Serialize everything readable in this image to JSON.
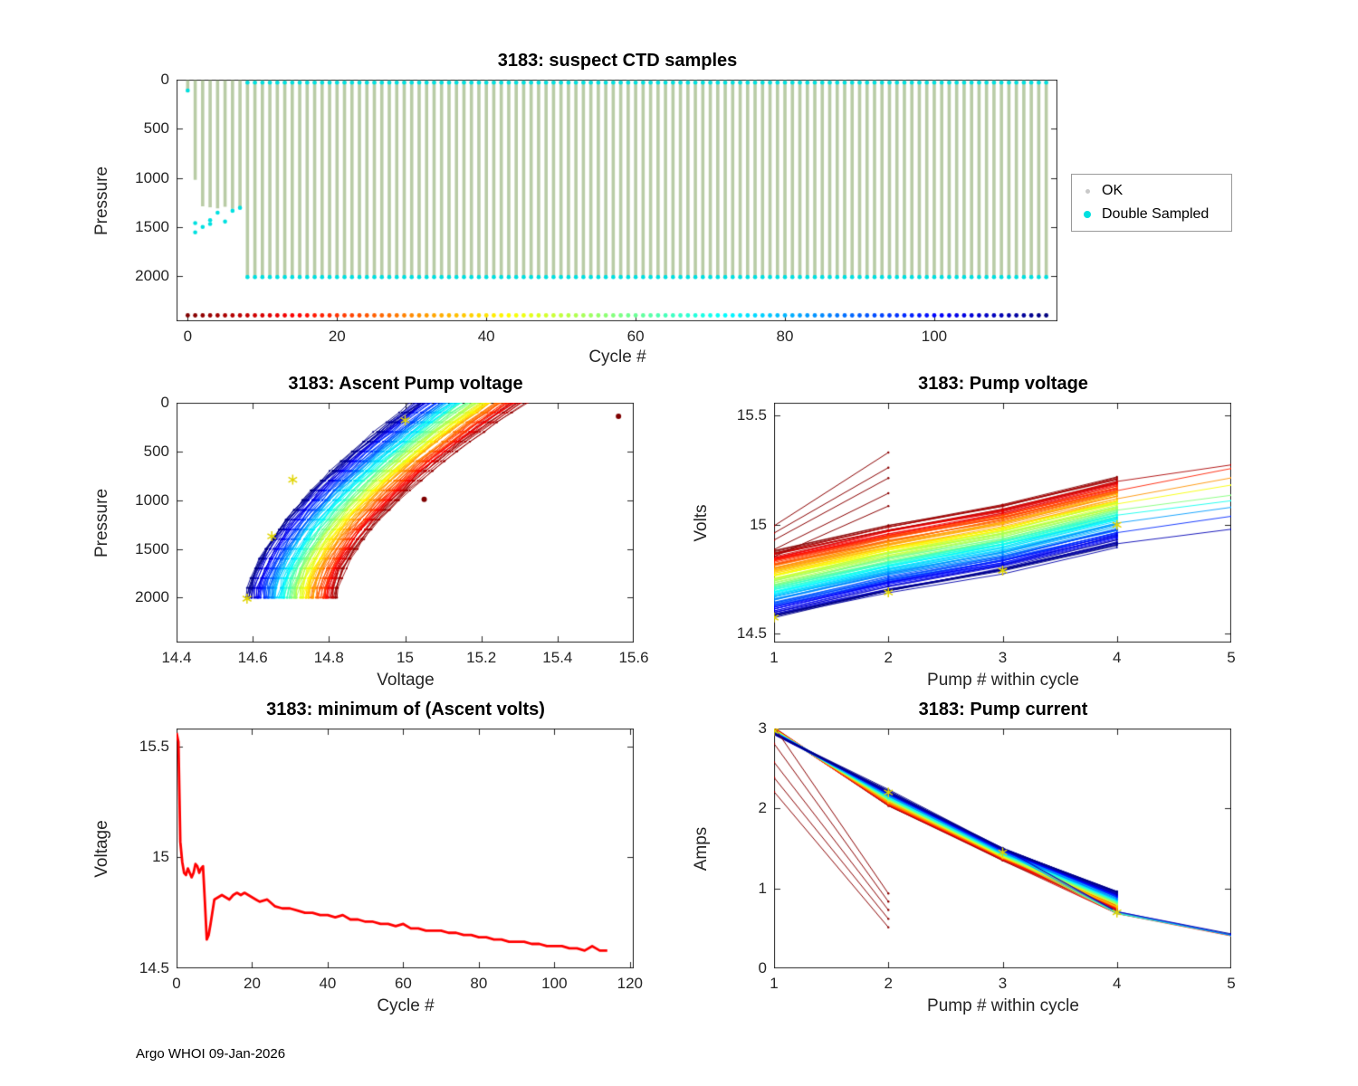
{
  "page": {
    "background": "#ffffff",
    "footer": "Argo WHOI 09-Jan-2026"
  },
  "chart_data": [
    {
      "id": "ctd_samples",
      "type": "scatter",
      "title": "3183: suspect CTD samples",
      "xlabel": "Cycle #",
      "ylabel": "Pressure",
      "xlim": [
        -1.5,
        116.5
      ],
      "ylim": [
        0,
        2460
      ],
      "y_reversed": true,
      "xticks": [
        0,
        20,
        40,
        60,
        80,
        100
      ],
      "yticks": [
        0,
        500,
        1000,
        1500,
        2000
      ],
      "n_cycles": 116,
      "legend": [
        {
          "label": "OK",
          "marker_color": "#c9c9c9"
        },
        {
          "label": "Double Sampled",
          "marker_color": "#00e0e0"
        }
      ],
      "series": {
        "ok_color": "#b9cca6",
        "double_sampled_color": "#00e0e0",
        "surface_pressure": 6,
        "early_cycles": [
          {
            "cycle": 0,
            "bar_to": 130,
            "double_sampled_at": [
              110
            ]
          },
          {
            "cycle": 1,
            "bar_to": 1020,
            "double_sampled_at": [
              1555,
              1460
            ]
          },
          {
            "cycle": 2,
            "bar_to": 1290,
            "double_sampled_at": [
              1500
            ]
          },
          {
            "cycle": 3,
            "bar_to": 1300,
            "double_sampled_at": [
              1470,
              1430
            ]
          },
          {
            "cycle": 4,
            "bar_to": 1310,
            "double_sampled_at": [
              1355
            ]
          },
          {
            "cycle": 5,
            "bar_to": 1295,
            "double_sampled_at": [
              1445
            ]
          },
          {
            "cycle": 6,
            "bar_to": 1315,
            "double_sampled_at": [
              1335
            ]
          },
          {
            "cycle": 7,
            "bar_to": 1300,
            "double_sampled_at": [
              1305
            ]
          }
        ],
        "deep_cycles": {
          "from": 8,
          "to": 115,
          "bar_to": 2005,
          "double_sampled_at": [
            30,
            2010
          ]
        },
        "bottom_marker_row": {
          "pressure": 2400,
          "colormap": "jet reversed by cycle: cycle 0 = dark red, cycle 115 = dark blue"
        }
      }
    },
    {
      "id": "ascent_pump_voltage",
      "type": "line",
      "title": "3183: Ascent Pump voltage",
      "xlabel": "Voltage",
      "ylabel": "Pressure",
      "xlim": [
        14.4,
        15.6
      ],
      "ylim": [
        0,
        2460
      ],
      "y_reversed": true,
      "xticks": [
        14.4,
        14.6,
        14.8,
        15,
        15.2,
        15.4,
        15.6
      ],
      "yticks": [
        0,
        500,
        1000,
        1500,
        2000
      ],
      "n_cycles": 116,
      "colormap": "jet reversed by cycle (early cycles dark red, late cycles dark blue)",
      "per_cycle_model": {
        "pressure_span": [
          2000,
          0
        ],
        "voltage_at_2000_dbar": [
          14.82,
          14.585
        ],
        "voltage_at_surface": [
          15.31,
          15.02
        ],
        "curve_exponent": 1.6
      },
      "marker_points": {
        "color": "#e0d400",
        "points": [
          [
            14.585,
            2010
          ],
          [
            14.65,
            1370
          ],
          [
            14.705,
            790
          ],
          [
            15.0,
            180
          ]
        ]
      },
      "outlier_points": {
        "color": "#7f0000",
        "points": [
          [
            15.56,
            140
          ],
          [
            15.05,
            990
          ]
        ]
      }
    },
    {
      "id": "pump_voltage",
      "type": "line",
      "title": "3183: Pump voltage",
      "xlabel": "Pump # within cycle",
      "ylabel": "Volts",
      "xlim": [
        1,
        5
      ],
      "ylim": [
        14.46,
        15.56
      ],
      "xticks": [
        1,
        2,
        3,
        4,
        5
      ],
      "yticks": [
        14.5,
        15,
        15.5
      ],
      "n_cycles": 116,
      "colormap": "jet reversed by cycle (early cycles red, late cycles dark blue)",
      "per_cycle_model": {
        "x": [
          1,
          2,
          3,
          4
        ],
        "volts_at_pump1": [
          14.88,
          14.575
        ],
        "increment_1_to_2": 0.115,
        "increment_2_to_3": 0.095,
        "increment_3_to_4": 0.125,
        "some_cycles_extend_to_pump5_increment": 0.08
      },
      "steep_early_cycle_lines": {
        "color": "#8b0000",
        "count": 5,
        "volts_at_pump1": [
          14.85,
          15.0
        ],
        "volts_at_pump2": [
          15.1,
          15.33
        ]
      },
      "marker_points": {
        "color": "#e0d400",
        "points": [
          [
            1,
            14.575
          ],
          [
            2,
            14.69
          ],
          [
            3,
            14.79
          ],
          [
            4,
            15.0
          ]
        ]
      }
    },
    {
      "id": "min_ascent_volts",
      "type": "line",
      "title": "3183: minimum of (Ascent volts)",
      "xlabel": "Cycle #",
      "ylabel": "Voltage",
      "xlim": [
        0,
        121
      ],
      "ylim": [
        14.5,
        15.58
      ],
      "xticks": [
        0,
        20,
        40,
        60,
        80,
        100,
        120
      ],
      "yticks": [
        14.5,
        15,
        15.5
      ],
      "line_color": "#ff0000",
      "line_width": 2.8,
      "points": [
        [
          0,
          15.56
        ],
        [
          0.5,
          15.52
        ],
        [
          1,
          15.07
        ],
        [
          1.5,
          14.98
        ],
        [
          2,
          14.93
        ],
        [
          2.5,
          14.92
        ],
        [
          3,
          14.95
        ],
        [
          3.5,
          14.93
        ],
        [
          4,
          14.91
        ],
        [
          4.5,
          14.93
        ],
        [
          5,
          14.97
        ],
        [
          5.5,
          14.96
        ],
        [
          6,
          14.93
        ],
        [
          6.5,
          14.95
        ],
        [
          7,
          14.96
        ],
        [
          7.5,
          14.8
        ],
        [
          8,
          14.63
        ],
        [
          8.5,
          14.65
        ],
        [
          9,
          14.7
        ],
        [
          10,
          14.81
        ],
        [
          11,
          14.82
        ],
        [
          12,
          14.83
        ],
        [
          13,
          14.82
        ],
        [
          14,
          14.81
        ],
        [
          15,
          14.83
        ],
        [
          16,
          14.84
        ],
        [
          17,
          14.83
        ],
        [
          18,
          14.84
        ],
        [
          19,
          14.83
        ],
        [
          20,
          14.82
        ],
        [
          21,
          14.81
        ],
        [
          22,
          14.8
        ],
        [
          24,
          14.81
        ],
        [
          26,
          14.78
        ],
        [
          28,
          14.77
        ],
        [
          30,
          14.77
        ],
        [
          32,
          14.76
        ],
        [
          34,
          14.75
        ],
        [
          36,
          14.75
        ],
        [
          38,
          14.74
        ],
        [
          40,
          14.74
        ],
        [
          42,
          14.73
        ],
        [
          44,
          14.74
        ],
        [
          46,
          14.72
        ],
        [
          48,
          14.72
        ],
        [
          50,
          14.71
        ],
        [
          52,
          14.71
        ],
        [
          54,
          14.7
        ],
        [
          56,
          14.7
        ],
        [
          58,
          14.69
        ],
        [
          60,
          14.7
        ],
        [
          62,
          14.68
        ],
        [
          64,
          14.68
        ],
        [
          66,
          14.67
        ],
        [
          68,
          14.67
        ],
        [
          70,
          14.67
        ],
        [
          72,
          14.66
        ],
        [
          74,
          14.66
        ],
        [
          76,
          14.65
        ],
        [
          78,
          14.65
        ],
        [
          80,
          14.64
        ],
        [
          82,
          14.64
        ],
        [
          84,
          14.63
        ],
        [
          86,
          14.63
        ],
        [
          88,
          14.62
        ],
        [
          90,
          14.62
        ],
        [
          92,
          14.62
        ],
        [
          94,
          14.61
        ],
        [
          96,
          14.61
        ],
        [
          98,
          14.6
        ],
        [
          100,
          14.6
        ],
        [
          102,
          14.6
        ],
        [
          104,
          14.59
        ],
        [
          106,
          14.59
        ],
        [
          108,
          14.58
        ],
        [
          110,
          14.6
        ],
        [
          111,
          14.59
        ],
        [
          112,
          14.58
        ],
        [
          113,
          14.58
        ],
        [
          114,
          14.58
        ]
      ]
    },
    {
      "id": "pump_current",
      "type": "line",
      "title": "3183: Pump current",
      "xlabel": "Pump # within cycle",
      "ylabel": "Amps",
      "xlim": [
        1,
        5
      ],
      "ylim": [
        0,
        3
      ],
      "xticks": [
        1,
        2,
        3,
        4,
        5
      ],
      "yticks": [
        0,
        1,
        2,
        3
      ],
      "n_cycles": 116,
      "colormap": "jet reversed by cycle (early cycles red, late cycles dark blue)",
      "per_cycle_model": {
        "x": [
          1,
          2,
          3,
          4
        ],
        "amps_at_pump1": [
          3.0,
          2.93
        ],
        "amps_at_pump2": [
          2.04,
          2.22
        ],
        "amps_at_pump3": [
          1.36,
          1.5
        ],
        "amps_at_pump4": [
          0.72,
          0.95
        ],
        "some_cycles_extend_to_pump5_amps": 0.42
      },
      "steep_early_cycle_lines": {
        "color": "#8b0000",
        "count": 5,
        "amps_at_pump1": [
          2.2,
          3.0
        ],
        "amps_at_pump2": [
          0.5,
          0.95
        ]
      },
      "marker_points": {
        "color": "#e0d400",
        "points": [
          [
            1,
            2.97
          ],
          [
            2,
            2.2
          ],
          [
            3,
            1.45
          ],
          [
            4,
            0.7
          ]
        ]
      }
    }
  ]
}
